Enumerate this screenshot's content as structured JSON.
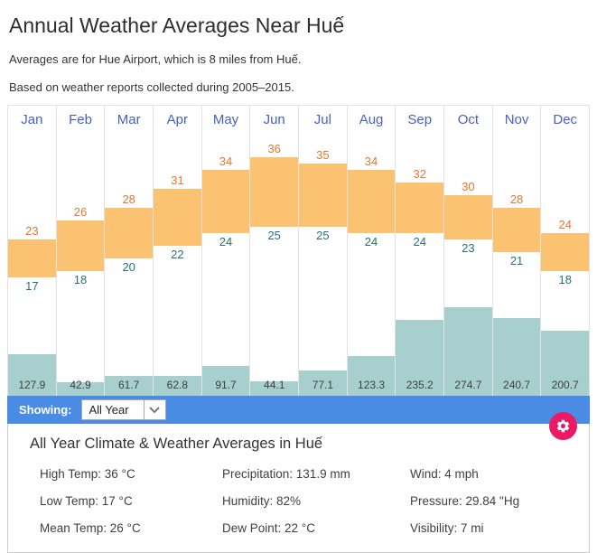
{
  "header": {
    "title": "Annual Weather Averages Near Huế",
    "subtitle": "Averages are for Hue Airport, which is 8 miles from Huế.",
    "note": "Based on weather reports collected during 2005–2015."
  },
  "chart_data": {
    "type": "bar",
    "title": "Annual temperature range and precipitation by month",
    "categories": [
      "Jan",
      "Feb",
      "Mar",
      "Apr",
      "May",
      "Jun",
      "Jul",
      "Aug",
      "Sep",
      "Oct",
      "Nov",
      "Dec"
    ],
    "series": [
      {
        "name": "High Temp (°C)",
        "values": [
          23,
          26,
          28,
          31,
          34,
          36,
          35,
          34,
          32,
          30,
          28,
          24
        ]
      },
      {
        "name": "Low Temp (°C)",
        "values": [
          17,
          18,
          20,
          22,
          24,
          25,
          25,
          24,
          24,
          23,
          21,
          18
        ]
      },
      {
        "name": "Precipitation (mm)",
        "values": [
          127.9,
          42.9,
          61.7,
          62.8,
          91.7,
          44.1,
          77.1,
          123.3,
          235.2,
          274.7,
          240.7,
          200.7
        ]
      }
    ],
    "temp_axis_range_c": [
      17,
      36
    ],
    "precip_axis_max_mm": 280,
    "legend_position": "none",
    "grid": "vertical-column-separators-only"
  },
  "colors": {
    "month_label": "#4A5FC4",
    "temp_bar": "#FBC271",
    "high_label": "#E5772F",
    "low_label": "#27707A",
    "precip_bar": "#A7CFCD",
    "precip_label": "#404040",
    "showing_bar_bg": "#4A8CE3",
    "gear_bg": "#EC1A64"
  },
  "showing_bar": {
    "label": "Showing:",
    "dropdown_value": "All Year"
  },
  "details": {
    "heading": "All Year Climate & Weather Averages in Huế",
    "items": [
      {
        "label": "High Temp",
        "value": "36 °C",
        "text": "High Temp: 36 °C"
      },
      {
        "label": "Precipitation",
        "value": "131.9 mm",
        "text": "Precipitation: 131.9 mm"
      },
      {
        "label": "Wind",
        "value": "4 mph",
        "text": "Wind: 4 mph"
      },
      {
        "label": "Low Temp",
        "value": "17 °C",
        "text": "Low Temp: 17 °C"
      },
      {
        "label": "Humidity",
        "value": "82%",
        "text": "Humidity: 82%"
      },
      {
        "label": "Pressure",
        "value": "29.84 \"Hg",
        "text": "Pressure: 29.84 \"Hg"
      },
      {
        "label": "Mean Temp",
        "value": "26 °C",
        "text": "Mean Temp: 26 °C"
      },
      {
        "label": "Dew Point",
        "value": "22 °C",
        "text": "Dew Point: 22 °C"
      },
      {
        "label": "Visibility",
        "value": "7 mi",
        "text": "Visibility: 7 mi"
      }
    ]
  }
}
